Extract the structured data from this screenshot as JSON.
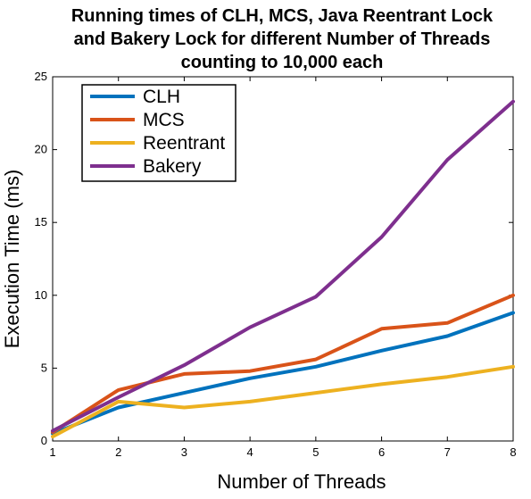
{
  "chart_data": {
    "type": "line",
    "title_lines": [
      "Running times of CLH, MCS, Java Reentrant Lock",
      "and Bakery Lock for different Number of Threads",
      "counting to 10,000 each"
    ],
    "xlabel": "Number of Threads",
    "ylabel": "Execution Time (ms)",
    "xlim": [
      1,
      8
    ],
    "ylim": [
      0,
      25
    ],
    "x_ticks": [
      "1",
      "2",
      "3",
      "4",
      "5",
      "6",
      "7",
      "8"
    ],
    "y_ticks": [
      "0",
      "5",
      "10",
      "15",
      "20",
      "25"
    ],
    "grid": false,
    "legend_position": "top-left",
    "x": [
      1,
      2,
      3,
      4,
      5,
      6,
      7,
      8
    ],
    "series": [
      {
        "name": "CLH",
        "color": "#0072BD",
        "values": [
          0.5,
          2.3,
          3.3,
          4.3,
          5.1,
          6.2,
          7.2,
          8.8
        ]
      },
      {
        "name": "MCS",
        "color": "#D95319",
        "values": [
          0.6,
          3.5,
          4.6,
          4.8,
          5.6,
          7.7,
          8.1,
          10.0
        ]
      },
      {
        "name": "Reentrant",
        "color": "#EDB120",
        "values": [
          0.3,
          2.7,
          2.3,
          2.7,
          3.3,
          3.9,
          4.4,
          5.1
        ]
      },
      {
        "name": "Bakery",
        "color": "#7E2F8E",
        "values": [
          0.7,
          3.0,
          5.2,
          7.8,
          9.9,
          14.0,
          19.3,
          23.3
        ]
      }
    ]
  }
}
